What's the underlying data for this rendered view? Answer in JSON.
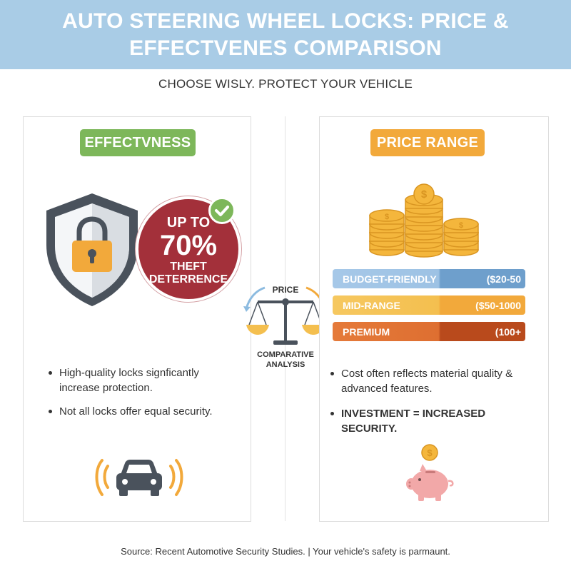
{
  "header": {
    "title_line1": "AUTO STEERING WHEEL LOCKS: PRICE &",
    "title_line2": "EFFECTVENES COMPARISON"
  },
  "subtitle": "CHOOSE WISLY. PROTECT YOUR VEHICLE",
  "left_panel": {
    "heading": "EFFECTVNESS",
    "badge": {
      "line1": "UP TO",
      "line2": "70%",
      "line3": "THEFT",
      "line4": "DETERRENCE"
    },
    "bullets": [
      "High-quality locks signficantly increase protection.",
      "Not all locks offer equal security."
    ],
    "icons": [
      "shield-lock-icon",
      "check-icon",
      "car-alarm-icon"
    ]
  },
  "center": {
    "top_label": "PRICE",
    "bottom_label_line1": "COMPARATIVE",
    "bottom_label_line2": "ANALYSIS",
    "icon": "balance-scale-icon"
  },
  "right_panel": {
    "heading": "PRICE RANGE",
    "tiers": [
      {
        "label": "BUDGET-FRIENDLY",
        "value": "($20-50"
      },
      {
        "label": "MID-RANGE",
        "value": "($50-1000"
      },
      {
        "label": "PREMIUM",
        "value": "(100+"
      }
    ],
    "bullets": [
      "Cost often reflects material quality & advanced features.",
      "INVESTMENT = INCREASED SECURITY."
    ],
    "icons": [
      "coin-stack-icon",
      "piggy-bank-icon"
    ]
  },
  "colors": {
    "header_bg": "#a9cce6",
    "green": "#7db75a",
    "orange": "#f2a93b",
    "badge_red": "#a3303a",
    "budget_blue": "#9dc2e4",
    "premium_orange": "#de6f31"
  },
  "footer": "Source: Recent Automotive Security Studies. | Your vehicle's safety is parmaunt."
}
